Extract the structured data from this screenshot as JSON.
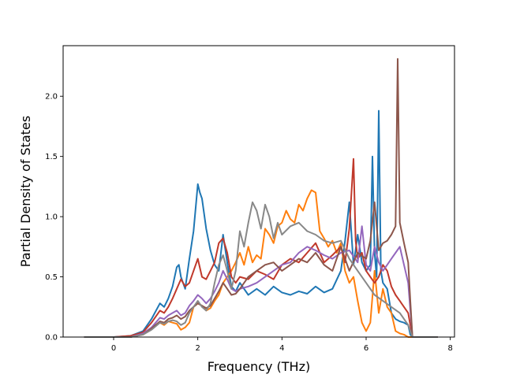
{
  "chart_data": {
    "type": "line",
    "title": "",
    "xlabel": "Frequency (THz)",
    "ylabel": "Partial Density of States",
    "xlim": [
      -1.2,
      8.1
    ],
    "ylim": [
      0,
      2.42
    ],
    "xticks": [
      0,
      2,
      4,
      6,
      8
    ],
    "yticks": [
      0.0,
      0.5,
      1.0,
      1.5,
      2.0
    ],
    "xtick_labels": [
      "0",
      "2",
      "4",
      "6",
      "8"
    ],
    "ytick_labels": [
      "0.0",
      "0.5",
      "1.0",
      "1.5",
      "2.0"
    ],
    "grid": false,
    "legend": "none",
    "series": [
      {
        "color": "#1f77b4",
        "x": [
          -0.7,
          0.0,
          0.4,
          0.7,
          0.9,
          1.1,
          1.2,
          1.3,
          1.4,
          1.5,
          1.55,
          1.6,
          1.7,
          1.8,
          1.9,
          2.0,
          2.05,
          2.1,
          2.2,
          2.3,
          2.4,
          2.5,
          2.6,
          2.7,
          2.8,
          2.9,
          3.0,
          3.2,
          3.4,
          3.6,
          3.8,
          4.0,
          4.2,
          4.4,
          4.6,
          4.8,
          5.0,
          5.2,
          5.4,
          5.5,
          5.6,
          5.7,
          5.8,
          5.9,
          6.0,
          6.1,
          6.15,
          6.2,
          6.25,
          6.3,
          6.35,
          6.4,
          6.5,
          6.6,
          6.7,
          6.8,
          6.9,
          7.0,
          7.05,
          7.1,
          7.7
        ],
        "y": [
          0.0,
          0.0,
          0.01,
          0.05,
          0.15,
          0.28,
          0.25,
          0.32,
          0.42,
          0.58,
          0.6,
          0.5,
          0.4,
          0.65,
          0.88,
          1.27,
          1.2,
          1.15,
          0.9,
          0.72,
          0.6,
          0.55,
          0.85,
          0.62,
          0.42,
          0.38,
          0.45,
          0.35,
          0.4,
          0.35,
          0.42,
          0.37,
          0.35,
          0.38,
          0.36,
          0.42,
          0.37,
          0.4,
          0.55,
          0.8,
          1.12,
          0.6,
          0.85,
          0.62,
          0.55,
          0.6,
          1.5,
          0.7,
          0.5,
          1.88,
          0.55,
          0.45,
          0.4,
          0.2,
          0.15,
          0.13,
          0.12,
          0.1,
          0.02,
          0.0,
          0.0
        ]
      },
      {
        "color": "#ff7f0e",
        "x": [
          -0.7,
          0.0,
          0.4,
          0.7,
          0.9,
          1.1,
          1.2,
          1.3,
          1.4,
          1.5,
          1.6,
          1.7,
          1.8,
          1.9,
          2.0,
          2.1,
          2.2,
          2.3,
          2.4,
          2.5,
          2.6,
          2.7,
          2.8,
          2.9,
          3.0,
          3.1,
          3.2,
          3.3,
          3.4,
          3.5,
          3.6,
          3.7,
          3.8,
          3.9,
          4.0,
          4.1,
          4.2,
          4.3,
          4.4,
          4.5,
          4.6,
          4.7,
          4.8,
          4.9,
          5.0,
          5.1,
          5.2,
          5.3,
          5.4,
          5.5,
          5.6,
          5.7,
          5.8,
          5.9,
          6.0,
          6.1,
          6.2,
          6.3,
          6.4,
          6.5,
          6.6,
          6.7,
          6.8,
          6.9,
          7.0,
          7.1,
          7.7
        ],
        "y": [
          0.0,
          0.0,
          0.0,
          0.03,
          0.08,
          0.12,
          0.1,
          0.13,
          0.12,
          0.11,
          0.06,
          0.08,
          0.12,
          0.25,
          0.28,
          0.26,
          0.22,
          0.24,
          0.3,
          0.35,
          0.45,
          0.5,
          0.55,
          0.62,
          0.7,
          0.6,
          0.75,
          0.62,
          0.68,
          0.65,
          0.9,
          0.85,
          0.78,
          0.92,
          0.95,
          1.05,
          0.98,
          0.95,
          1.1,
          1.05,
          1.15,
          1.22,
          1.2,
          0.88,
          0.82,
          0.75,
          0.8,
          0.7,
          0.78,
          0.55,
          0.45,
          0.5,
          0.3,
          0.12,
          0.05,
          0.12,
          0.55,
          0.2,
          0.4,
          0.25,
          0.2,
          0.05,
          0.03,
          0.02,
          0.0,
          0.0,
          0.0
        ]
      },
      {
        "color": "#c0392b",
        "x": [
          -0.7,
          0.0,
          0.4,
          0.7,
          0.9,
          1.1,
          1.2,
          1.3,
          1.4,
          1.5,
          1.6,
          1.7,
          1.8,
          1.9,
          2.0,
          2.1,
          2.2,
          2.3,
          2.4,
          2.5,
          2.6,
          2.7,
          2.8,
          2.9,
          3.0,
          3.2,
          3.4,
          3.6,
          3.8,
          4.0,
          4.2,
          4.4,
          4.6,
          4.8,
          5.0,
          5.2,
          5.4,
          5.5,
          5.6,
          5.7,
          5.75,
          5.8,
          5.9,
          6.0,
          6.1,
          6.2,
          6.3,
          6.4,
          6.5,
          6.6,
          6.7,
          6.8,
          6.9,
          7.0,
          7.1,
          7.7
        ],
        "y": [
          0.0,
          0.0,
          0.01,
          0.04,
          0.12,
          0.22,
          0.2,
          0.25,
          0.32,
          0.4,
          0.48,
          0.42,
          0.45,
          0.55,
          0.65,
          0.5,
          0.48,
          0.55,
          0.62,
          0.78,
          0.82,
          0.7,
          0.5,
          0.45,
          0.5,
          0.48,
          0.55,
          0.52,
          0.48,
          0.6,
          0.65,
          0.62,
          0.7,
          0.78,
          0.62,
          0.68,
          0.75,
          0.62,
          0.9,
          1.48,
          0.8,
          0.65,
          0.7,
          0.55,
          0.5,
          0.45,
          0.5,
          0.6,
          0.55,
          0.42,
          0.35,
          0.3,
          0.25,
          0.2,
          0.0,
          0.0
        ]
      },
      {
        "color": "#9467bd",
        "x": [
          -0.7,
          0.0,
          0.4,
          0.7,
          0.9,
          1.1,
          1.2,
          1.3,
          1.4,
          1.5,
          1.6,
          1.7,
          1.8,
          1.9,
          2.0,
          2.1,
          2.2,
          2.3,
          2.4,
          2.5,
          2.6,
          2.7,
          2.8,
          2.9,
          3.0,
          3.2,
          3.4,
          3.6,
          3.8,
          4.0,
          4.2,
          4.4,
          4.6,
          4.8,
          5.0,
          5.2,
          5.4,
          5.6,
          5.8,
          5.9,
          6.0,
          6.1,
          6.2,
          6.3,
          6.4,
          6.5,
          6.6,
          6.7,
          6.8,
          6.9,
          7.0,
          7.1,
          7.7
        ],
        "y": [
          0.0,
          0.0,
          0.0,
          0.03,
          0.08,
          0.16,
          0.15,
          0.18,
          0.2,
          0.22,
          0.18,
          0.2,
          0.26,
          0.3,
          0.35,
          0.32,
          0.28,
          0.32,
          0.38,
          0.45,
          0.55,
          0.48,
          0.4,
          0.38,
          0.4,
          0.42,
          0.45,
          0.5,
          0.55,
          0.6,
          0.62,
          0.7,
          0.75,
          0.72,
          0.68,
          0.65,
          0.7,
          0.72,
          0.62,
          0.92,
          0.6,
          0.55,
          0.75,
          0.62,
          0.55,
          0.6,
          0.65,
          0.7,
          0.75,
          0.6,
          0.45,
          0.0,
          0.0
        ]
      },
      {
        "color": "#8c564b",
        "x": [
          -0.7,
          0.0,
          0.4,
          0.7,
          0.9,
          1.1,
          1.2,
          1.3,
          1.4,
          1.5,
          1.6,
          1.7,
          1.8,
          1.9,
          2.0,
          2.1,
          2.2,
          2.3,
          2.4,
          2.5,
          2.6,
          2.7,
          2.8,
          2.9,
          3.0,
          3.2,
          3.4,
          3.6,
          3.8,
          4.0,
          4.2,
          4.4,
          4.6,
          4.8,
          5.0,
          5.2,
          5.4,
          5.6,
          5.8,
          6.0,
          6.1,
          6.2,
          6.3,
          6.4,
          6.5,
          6.6,
          6.7,
          6.75,
          6.8,
          6.9,
          7.0,
          7.05,
          7.1,
          7.7
        ],
        "y": [
          0.0,
          0.0,
          0.0,
          0.02,
          0.07,
          0.13,
          0.12,
          0.15,
          0.16,
          0.18,
          0.15,
          0.17,
          0.22,
          0.25,
          0.28,
          0.26,
          0.24,
          0.26,
          0.32,
          0.38,
          0.45,
          0.4,
          0.35,
          0.36,
          0.4,
          0.5,
          0.55,
          0.6,
          0.62,
          0.55,
          0.6,
          0.65,
          0.62,
          0.7,
          0.6,
          0.55,
          0.75,
          0.55,
          0.7,
          0.65,
          0.8,
          1.12,
          0.72,
          0.78,
          0.8,
          0.85,
          0.92,
          2.31,
          0.95,
          0.78,
          0.62,
          0.3,
          0.0,
          0.0
        ]
      },
      {
        "color": "#888888",
        "x": [
          -0.7,
          0.0,
          0.4,
          0.7,
          0.9,
          1.1,
          1.2,
          1.3,
          1.4,
          1.5,
          1.6,
          1.7,
          1.8,
          1.9,
          2.0,
          2.1,
          2.2,
          2.3,
          2.4,
          2.5,
          2.6,
          2.7,
          2.8,
          2.9,
          3.0,
          3.1,
          3.2,
          3.3,
          3.4,
          3.5,
          3.6,
          3.7,
          3.8,
          3.9,
          4.0,
          4.2,
          4.4,
          4.6,
          4.8,
          5.0,
          5.2,
          5.4,
          5.6,
          5.8,
          6.0,
          6.2,
          6.4,
          6.6,
          6.8,
          6.9,
          7.0,
          7.1,
          7.7
        ],
        "y": [
          0.0,
          0.0,
          0.0,
          0.02,
          0.06,
          0.12,
          0.11,
          0.13,
          0.14,
          0.13,
          0.1,
          0.12,
          0.2,
          0.25,
          0.3,
          0.25,
          0.22,
          0.28,
          0.45,
          0.6,
          0.68,
          0.55,
          0.4,
          0.55,
          0.88,
          0.75,
          0.95,
          1.12,
          1.05,
          0.9,
          1.1,
          1.0,
          0.82,
          0.95,
          0.85,
          0.92,
          0.95,
          0.88,
          0.85,
          0.8,
          0.78,
          0.8,
          0.65,
          0.55,
          0.45,
          0.35,
          0.3,
          0.25,
          0.2,
          0.15,
          0.1,
          0.0,
          0.0
        ]
      }
    ]
  }
}
